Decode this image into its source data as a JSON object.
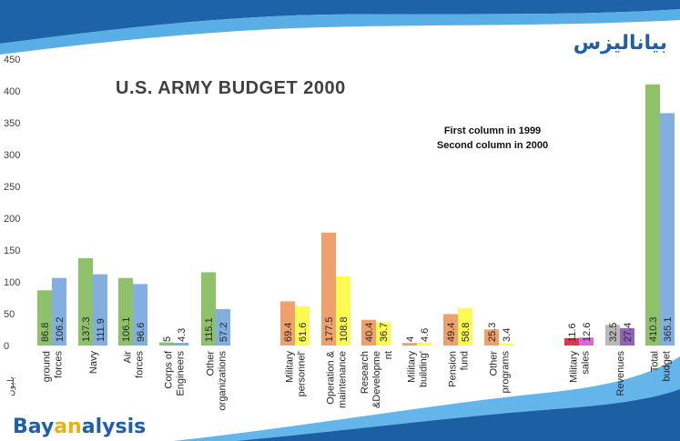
{
  "chart_data": {
    "type": "bar",
    "title": "U.S. ARMY BUDGET 2000",
    "note_lines": [
      "First column in 1999",
      "Second column in 2000"
    ],
    "unit_label": "بليون",
    "ylim": [
      0,
      450
    ],
    "yticks": [
      0,
      50,
      100,
      150,
      200,
      250,
      300,
      350,
      400,
      450
    ],
    "categories": [
      {
        "lines": [
          "ground",
          "forces"
        ],
        "v1999": 86.8,
        "v2000": 106.2,
        "c1999": "#8fc16b",
        "c2000": "#83afe0",
        "labels": [
          "86.8",
          "106.2"
        ]
      },
      {
        "lines": [
          "Navy"
        ],
        "v1999": 137.3,
        "v2000": 111.9,
        "c1999": "#8fc16b",
        "c2000": "#83afe0",
        "labels": [
          "137.3",
          "111.9"
        ]
      },
      {
        "lines": [
          "Air",
          "forces"
        ],
        "v1999": 106.1,
        "v2000": 96.6,
        "c1999": "#8fc16b",
        "c2000": "#83afe0",
        "labels": [
          "106.1",
          "96.6"
        ]
      },
      {
        "lines": [
          "Corps of",
          "Engineers"
        ],
        "v1999": 5,
        "v2000": 4.3,
        "c1999": "#8fc16b",
        "c2000": "#83afe0",
        "labels": [
          "5",
          "4.3"
        ]
      },
      {
        "lines": [
          "Other",
          "organizations"
        ],
        "v1999": 115.1,
        "v2000": 57.2,
        "c1999": "#8fc16b",
        "c2000": "#83afe0",
        "labels": [
          "115.1",
          "57.2"
        ]
      },
      {
        "lines": [
          "Military",
          "personnel'"
        ],
        "v1999": 69.4,
        "v2000": 61.6,
        "c1999": "#f0a06c",
        "c2000": "#fbfb52",
        "labels": [
          "69.4",
          "61.6"
        ]
      },
      {
        "lines": [
          "Operation &",
          "maintenance"
        ],
        "v1999": 177.5,
        "v2000": 108.8,
        "c1999": "#f0a06c",
        "c2000": "#fbfb52",
        "labels": [
          "177.5",
          "108.8"
        ]
      },
      {
        "lines": [
          "Research",
          "&Developme",
          "nt"
        ],
        "v1999": 40.4,
        "v2000": 36.7,
        "c1999": "#f0a06c",
        "c2000": "#fbfb52",
        "labels": [
          "40.4",
          "36.7"
        ]
      },
      {
        "lines": [
          "Military",
          "building'"
        ],
        "v1999": 4,
        "v2000": 4.6,
        "c1999": "#f0a06c",
        "c2000": "#fbfb52",
        "labels": [
          "4",
          "4.6"
        ]
      },
      {
        "lines": [
          "Pension",
          "fund"
        ],
        "v1999": 49.4,
        "v2000": 58.8,
        "c1999": "#f0a06c",
        "c2000": "#fbfb52",
        "labels": [
          "49.4",
          "58.8"
        ]
      },
      {
        "lines": [
          "Other",
          "programs"
        ],
        "v1999": 25.3,
        "v2000": 3.4,
        "c1999": "#f0a06c",
        "c2000": "#fbfb52",
        "labels": [
          "25.3",
          "3.4"
        ]
      },
      {
        "lines": [
          "Military",
          "sales"
        ],
        "v1999": 11.6,
        "v2000": 12.6,
        "c1999": "#d63a4b",
        "c2000": "#e064e0",
        "labels": [
          "11.6",
          "12.6"
        ]
      },
      {
        "lines": [
          "Revenues"
        ],
        "v1999": 32.5,
        "v2000": 27.4,
        "c1999": "#b9b9b9",
        "c2000": "#8f63b8",
        "labels": [
          "32.5",
          "27.4"
        ]
      },
      {
        "lines": [
          "Total",
          "budget"
        ],
        "v1999": 410.3,
        "v2000": 365.1,
        "c1999": "#8fc16b",
        "c2000": "#83afe0",
        "labels": [
          "410.3",
          "365.1"
        ]
      }
    ]
  },
  "branding": {
    "arabic_logo": "بياناليزس",
    "english_logo_parts": [
      "Bay",
      "an",
      "alysis"
    ],
    "colors": {
      "header_dark": "#1e63a8",
      "header_light": "#5aaee6",
      "footer_dark": "#1c5fa3",
      "footer_light": "#63b5ea",
      "arabic_logo_blue": "#1f5faa",
      "arabic_logo_green": "#6aa82f",
      "english_logo_blue": "#1f5faa",
      "english_logo_yellow": "#e8b20f"
    }
  }
}
